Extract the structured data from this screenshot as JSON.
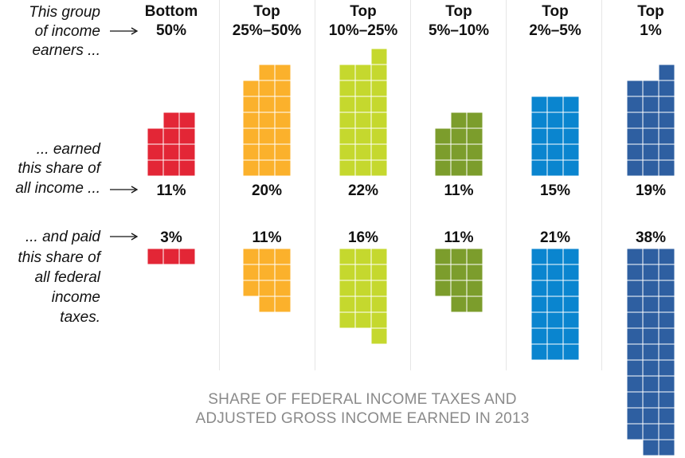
{
  "chart_data": {
    "type": "waffle",
    "title": "",
    "footnote": [
      "SHARE OF FEDERAL INCOME TAXES AND",
      "ADJUSTED GROSS INCOME EARNED IN 2013"
    ],
    "row_labels": {
      "group": [
        "This group",
        "of income",
        "earners ..."
      ],
      "income": [
        "... earned",
        "this share of",
        "all income ..."
      ],
      "taxes": [
        "... and paid",
        "this share of",
        "all federal",
        "income",
        "taxes."
      ]
    },
    "categories": [
      {
        "name": [
          "Bottom",
          "50%"
        ],
        "income_share": 11,
        "income_label": "11%",
        "tax_share": 3,
        "tax_label": "3%",
        "color": "#e32636"
      },
      {
        "name": [
          "Top",
          "25%–50%"
        ],
        "income_share": 20,
        "income_label": "20%",
        "tax_share": 11,
        "tax_label": "11%",
        "color": "#fbb12c"
      },
      {
        "name": [
          "Top",
          "10%–25%"
        ],
        "income_share": 22,
        "income_label": "22%",
        "tax_share": 16,
        "tax_label": "16%",
        "color": "#c5d82e"
      },
      {
        "name": [
          "Top",
          "5%–10%"
        ],
        "income_share": 11,
        "income_label": "11%",
        "tax_share": 11,
        "tax_label": "11%",
        "color": "#7c9d2c"
      },
      {
        "name": [
          "Top",
          "2%–5%"
        ],
        "income_share": 15,
        "income_label": "15%",
        "tax_share": 21,
        "tax_label": "21%",
        "color": "#0a85cf"
      },
      {
        "name": [
          "Top",
          "1%"
        ],
        "income_share": 19,
        "income_label": "19%",
        "tax_share": 38,
        "tax_label": "38%",
        "color": "#2e5fa1"
      }
    ]
  }
}
